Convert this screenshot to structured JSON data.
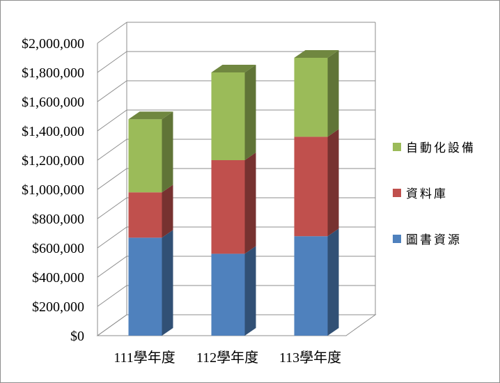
{
  "chart_data": {
    "type": "bar",
    "stacked": true,
    "three_d": true,
    "categories": [
      "111學年度",
      "112學年度",
      "113學年度"
    ],
    "series": [
      {
        "name": "圖書資源",
        "values": [
          670000,
          560000,
          680000
        ],
        "color": "#4f81bd"
      },
      {
        "name": "資料庫",
        "values": [
          310000,
          640000,
          680000
        ],
        "color": "#c0504d"
      },
      {
        "name": "自動化設備",
        "values": [
          500000,
          600000,
          540000
        ],
        "color": "#9bbb59"
      }
    ],
    "y_ticks": [
      "$0",
      "$200,000",
      "$400,000",
      "$600,000",
      "$800,000",
      "$1,000,000",
      "$1,200,000",
      "$1,400,000",
      "$1,600,000",
      "$1,800,000",
      "$2,000,000"
    ],
    "ylim": [
      0,
      2000000
    ],
    "grid": true,
    "legend_position": "right",
    "legend_order": [
      "自動化設備",
      "資料庫",
      "圖書資源"
    ]
  }
}
